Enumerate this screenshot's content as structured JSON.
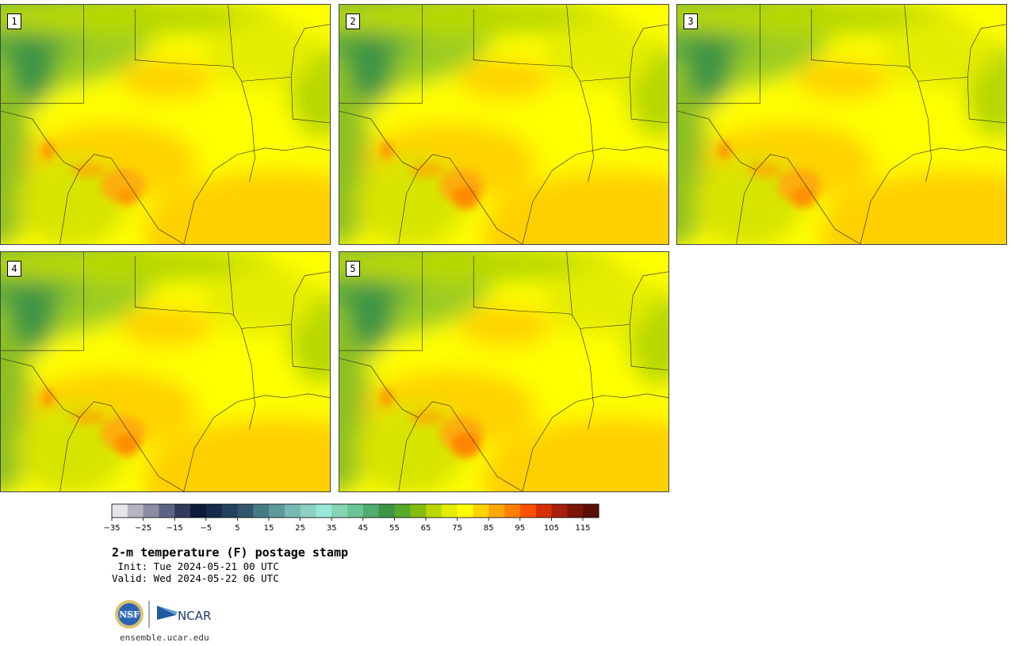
{
  "title": "2-m temperature (F) postage stamp",
  "init_line": " Init: Tue 2024-05-21 00 UTC",
  "valid_line": "Valid: Wed 2024-05-22 06 UTC",
  "website": "ensemble.ucar.edu",
  "logos": {
    "nsf": "NSF",
    "ncar": "NCAR"
  },
  "panels": [
    {
      "label": "1",
      "hot_spot": 0.5
    },
    {
      "label": "2",
      "hot_spot": 0.8
    },
    {
      "label": "3",
      "hot_spot": 0.7
    },
    {
      "label": "4",
      "hot_spot": 0.75
    },
    {
      "label": "5",
      "hot_spot": 0.9
    }
  ],
  "colorbar": {
    "ticks": [
      "−35",
      "−25",
      "−15",
      "−5",
      "5",
      "15",
      "25",
      "35",
      "45",
      "55",
      "65",
      "75",
      "85",
      "95",
      "105",
      "115"
    ],
    "colors": [
      "#e6e6ea",
      "#b4b4c4",
      "#8c8ca4",
      "#5c6484",
      "#303a5a",
      "#0e1a3a",
      "#182a4a",
      "#24405c",
      "#34566c",
      "#487a86",
      "#5e989c",
      "#78b8b4",
      "#8ed0c4",
      "#98e8d8",
      "#86d4b4",
      "#6ac496",
      "#50ac70",
      "#3c9444",
      "#58a82a",
      "#84bc12",
      "#b8d800",
      "#e4ec00",
      "#ffff00",
      "#ffd200",
      "#ffa808",
      "#ff8000",
      "#ff5200",
      "#d43008",
      "#a81e0c",
      "#7c1408",
      "#5a1008"
    ]
  }
}
